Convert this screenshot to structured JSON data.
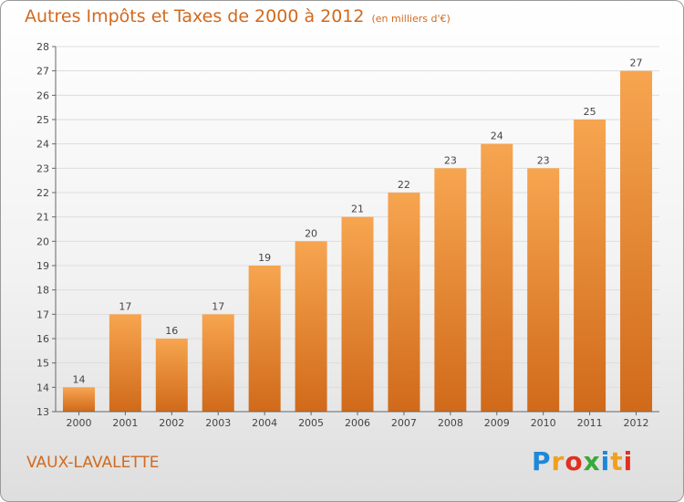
{
  "header": {
    "title": "Autres Impôts et Taxes de 2000 à 2012",
    "subtitle": "(en milliers d'€)"
  },
  "footer": {
    "commune": "VAUX-LAVALETTE",
    "logo": {
      "letters": [
        "P",
        "r",
        "o",
        "x",
        "i",
        "t",
        "i"
      ],
      "colors": [
        "#1e88d8",
        "#f0a020",
        "#e03020",
        "#3aa83a",
        "#1e88d8",
        "#f0a020",
        "#e03020"
      ]
    }
  },
  "colors": {
    "title": "#d2691e",
    "bar_light": "#f7a550",
    "bar_dark": "#d06a1a",
    "grid": "#dddddd",
    "axis": "#666666"
  },
  "chart_data": {
    "type": "bar",
    "title": "Autres Impôts et Taxes de 2000 à 2012",
    "subtitle": "(en milliers d'€)",
    "categories": [
      "2000",
      "2001",
      "2002",
      "2003",
      "2004",
      "2005",
      "2006",
      "2007",
      "2008",
      "2009",
      "2010",
      "2011",
      "2012"
    ],
    "values": [
      14,
      17,
      16,
      17,
      19,
      20,
      21,
      22,
      23,
      24,
      23,
      25,
      27
    ],
    "ylim": [
      13,
      28
    ],
    "yticks": [
      13,
      14,
      15,
      16,
      17,
      18,
      19,
      20,
      21,
      22,
      23,
      24,
      25,
      26,
      27,
      28
    ],
    "grid": true,
    "data_labels": true
  }
}
